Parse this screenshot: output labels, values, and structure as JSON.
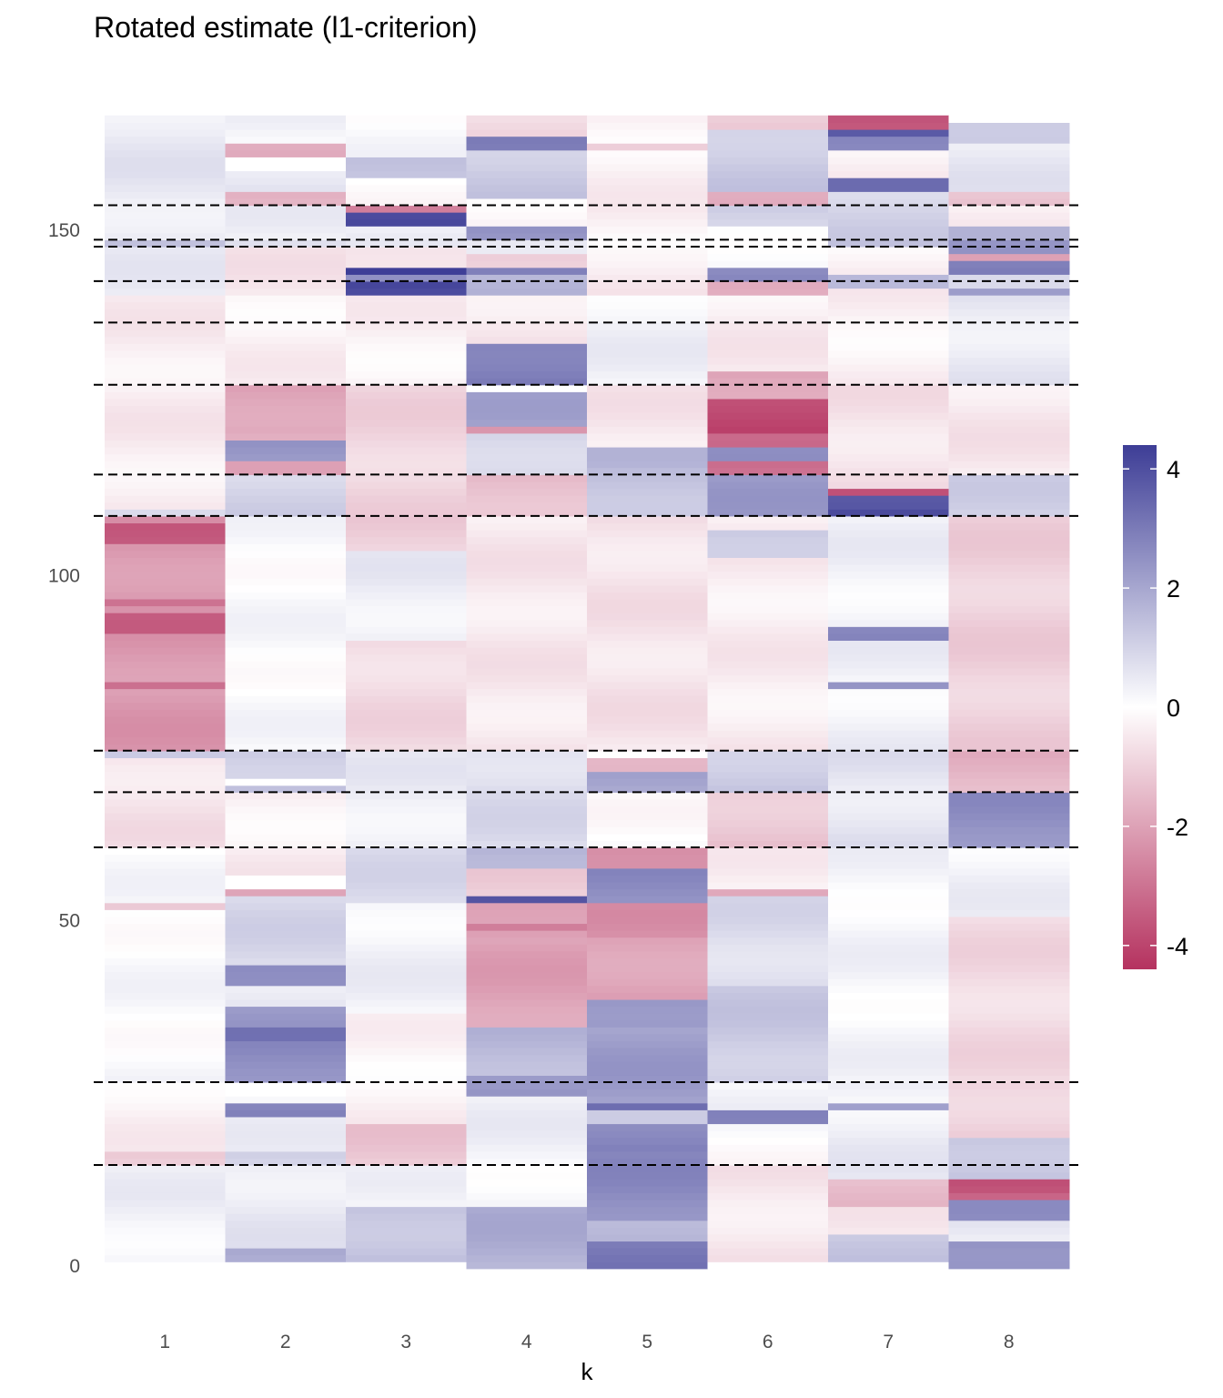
{
  "chart_data": {
    "type": "heatmap",
    "title": "Rotated estimate (l1-criterion)",
    "xlabel": "k",
    "ylabel": "",
    "x_categories": [
      "1",
      "2",
      "3",
      "4",
      "5",
      "6",
      "7",
      "8"
    ],
    "y_range": [
      0,
      166
    ],
    "y_ticks": [
      0,
      50,
      100,
      150
    ],
    "color_scale": {
      "min": -4.4,
      "max": 4.4,
      "low_color": "#b5325f",
      "mid_color": "#ffffff",
      "high_color": "#3d3d96",
      "legend_ticks": [
        4,
        2,
        0,
        -2,
        -4
      ]
    },
    "divider_rows": [
      14.5,
      26.5,
      60.5,
      68.5,
      74.5,
      108.5,
      114.5,
      127.5,
      136.5,
      142.5,
      147.5,
      148.5,
      153.5
    ],
    "legend_position": "right",
    "grid": false,
    "columns": [
      {
        "k": "1",
        "blocks": [
          [
            1,
            14,
            0.3
          ],
          [
            15,
            16,
            -1.0
          ],
          [
            17,
            26,
            -0.3
          ],
          [
            27,
            60,
            0.1
          ],
          [
            52,
            52,
            -1.2
          ],
          [
            61,
            73,
            -0.6
          ],
          [
            74,
            74,
            1.2
          ],
          [
            75,
            108,
            -2.2
          ],
          [
            105,
            107,
            -3.4
          ],
          [
            96,
            96,
            -3.0
          ],
          [
            92,
            94,
            -3.3
          ],
          [
            84,
            84,
            -3.3
          ],
          [
            109,
            109,
            1.0
          ],
          [
            110,
            127,
            -0.4
          ],
          [
            128,
            140,
            -0.4
          ],
          [
            141,
            147,
            0.4
          ],
          [
            148,
            148,
            1.4
          ],
          [
            149,
            166,
            0.5
          ]
        ]
      },
      {
        "k": "2",
        "blocks": [
          [
            1,
            2,
            1.8
          ],
          [
            3,
            14,
            0.5
          ],
          [
            15,
            16,
            1.0
          ],
          [
            17,
            24,
            0.3
          ],
          [
            22,
            23,
            2.8
          ],
          [
            27,
            32,
            2.6
          ],
          [
            33,
            34,
            3.0
          ],
          [
            35,
            37,
            2.2
          ],
          [
            38,
            42,
            0.6
          ],
          [
            41,
            43,
            2.8
          ],
          [
            44,
            53,
            0.9
          ],
          [
            54,
            54,
            -1.8
          ],
          [
            57,
            60,
            -0.4
          ],
          [
            61,
            68,
            -0.3
          ],
          [
            69,
            69,
            1.6
          ],
          [
            71,
            74,
            1.2
          ],
          [
            75,
            108,
            0.1
          ],
          [
            109,
            114,
            1.0
          ],
          [
            115,
            120,
            -1.8
          ],
          [
            117,
            119,
            2.5
          ],
          [
            121,
            127,
            -2.0
          ],
          [
            128,
            140,
            -0.3
          ],
          [
            141,
            147,
            -0.5
          ],
          [
            148,
            148,
            0.8
          ],
          [
            149,
            153,
            0.3
          ],
          [
            154,
            155,
            -1.8
          ],
          [
            156,
            158,
            0.6
          ],
          [
            161,
            162,
            -1.6
          ],
          [
            163,
            166,
            0.2
          ]
        ]
      },
      {
        "k": "3",
        "blocks": [
          [
            1,
            8,
            1.4
          ],
          [
            9,
            14,
            0.2
          ],
          [
            15,
            20,
            -1.2
          ],
          [
            21,
            26,
            -0.3
          ],
          [
            27,
            36,
            -0.2
          ],
          [
            37,
            52,
            0.3
          ],
          [
            53,
            60,
            0.8
          ],
          [
            61,
            74,
            0.4
          ],
          [
            75,
            90,
            -0.8
          ],
          [
            91,
            103,
            0.4
          ],
          [
            104,
            108,
            -1.0
          ],
          [
            109,
            114,
            -0.9
          ],
          [
            115,
            127,
            -0.9
          ],
          [
            128,
            140,
            -0.3
          ],
          [
            141,
            142,
            4.2
          ],
          [
            143,
            143,
            2.4
          ],
          [
            144,
            144,
            4.2
          ],
          [
            145,
            147,
            -0.8
          ],
          [
            148,
            150,
            0.4
          ],
          [
            151,
            152,
            4.3
          ],
          [
            153,
            153,
            -2.5
          ],
          [
            154,
            157,
            0.0
          ],
          [
            158,
            160,
            1.2
          ],
          [
            161,
            166,
            0.1
          ]
        ]
      },
      {
        "k": "4",
        "blocks": [
          [
            0,
            8,
            1.8
          ],
          [
            9,
            14,
            0.2
          ],
          [
            15,
            26,
            0.3
          ],
          [
            25,
            27,
            2.5
          ],
          [
            28,
            34,
            1.6
          ],
          [
            35,
            47,
            -2.0
          ],
          [
            48,
            52,
            -2.2
          ],
          [
            49,
            49,
            -3.0
          ],
          [
            53,
            53,
            3.8
          ],
          [
            54,
            57,
            -1.0
          ],
          [
            58,
            60,
            1.8
          ],
          [
            61,
            74,
            0.8
          ],
          [
            75,
            108,
            -0.5
          ],
          [
            109,
            114,
            -1.4
          ],
          [
            115,
            120,
            1.0
          ],
          [
            121,
            121,
            -2.3
          ],
          [
            122,
            126,
            2.0
          ],
          [
            128,
            133,
            3.0
          ],
          [
            134,
            140,
            -0.5
          ],
          [
            141,
            143,
            1.6
          ],
          [
            144,
            144,
            3.0
          ],
          [
            145,
            146,
            -0.8
          ],
          [
            147,
            148,
            0.7
          ],
          [
            149,
            150,
            2.5
          ],
          [
            151,
            154,
            -0.3
          ],
          [
            155,
            161,
            1.2
          ],
          [
            162,
            163,
            3.2
          ],
          [
            164,
            166,
            -0.8
          ]
        ]
      },
      {
        "k": "5",
        "blocks": [
          [
            0,
            3,
            3.0
          ],
          [
            4,
            6,
            1.8
          ],
          [
            7,
            16,
            2.6
          ],
          [
            17,
            20,
            2.8
          ],
          [
            21,
            22,
            1.4
          ],
          [
            23,
            23,
            3.5
          ],
          [
            24,
            34,
            2.2
          ],
          [
            35,
            38,
            2.5
          ],
          [
            39,
            47,
            -2.0
          ],
          [
            48,
            52,
            -2.3
          ],
          [
            53,
            57,
            2.6
          ],
          [
            58,
            60,
            -2.6
          ],
          [
            61,
            68,
            0.0
          ],
          [
            69,
            71,
            2.0
          ],
          [
            72,
            73,
            -1.8
          ],
          [
            75,
            108,
            -0.6
          ],
          [
            109,
            115,
            1.4
          ],
          [
            116,
            118,
            1.5
          ],
          [
            119,
            127,
            -0.5
          ],
          [
            128,
            140,
            0.3
          ],
          [
            141,
            147,
            -0.4
          ],
          [
            148,
            166,
            -0.3
          ],
          [
            162,
            162,
            -1.3
          ]
        ]
      },
      {
        "k": "6",
        "blocks": [
          [
            1,
            14,
            -0.5
          ],
          [
            15,
            20,
            0.0
          ],
          [
            21,
            22,
            2.6
          ],
          [
            23,
            26,
            0.2
          ],
          [
            27,
            40,
            1.2
          ],
          [
            41,
            53,
            0.8
          ],
          [
            54,
            54,
            -2.0
          ],
          [
            55,
            60,
            -0.3
          ],
          [
            61,
            68,
            -1.2
          ],
          [
            69,
            74,
            1.2
          ],
          [
            75,
            108,
            -0.4
          ],
          [
            103,
            106,
            1.3
          ],
          [
            109,
            114,
            2.2
          ],
          [
            115,
            120,
            -3.0
          ],
          [
            117,
            118,
            2.8
          ],
          [
            121,
            125,
            -4.0
          ],
          [
            126,
            129,
            -2.0
          ],
          [
            130,
            140,
            -0.4
          ],
          [
            141,
            142,
            -2.0
          ],
          [
            143,
            144,
            2.6
          ],
          [
            145,
            150,
            0.2
          ],
          [
            151,
            153,
            1.0
          ],
          [
            154,
            155,
            -2.0
          ],
          [
            156,
            164,
            1.2
          ],
          [
            165,
            166,
            -1.0
          ]
        ]
      },
      {
        "k": "7",
        "blocks": [
          [
            1,
            4,
            1.2
          ],
          [
            5,
            8,
            -0.4
          ],
          [
            9,
            12,
            -1.4
          ],
          [
            13,
            26,
            0.4
          ],
          [
            23,
            23,
            2.4
          ],
          [
            27,
            60,
            0.2
          ],
          [
            61,
            74,
            0.6
          ],
          [
            75,
            108,
            0.3
          ],
          [
            91,
            92,
            2.6
          ],
          [
            84,
            84,
            2.6
          ],
          [
            109,
            109,
            4.2
          ],
          [
            110,
            111,
            4.0
          ],
          [
            112,
            112,
            -3.5
          ],
          [
            113,
            127,
            -0.6
          ],
          [
            128,
            141,
            -0.3
          ],
          [
            142,
            143,
            1.8
          ],
          [
            144,
            147,
            -0.3
          ],
          [
            148,
            148,
            1.2
          ],
          [
            149,
            155,
            1.0
          ],
          [
            156,
            157,
            3.6
          ],
          [
            158,
            161,
            -0.3
          ],
          [
            162,
            163,
            2.5
          ],
          [
            164,
            164,
            3.5
          ],
          [
            165,
            166,
            -3.8
          ]
        ]
      },
      {
        "k": "8",
        "blocks": [
          [
            0,
            3,
            2.6
          ],
          [
            4,
            6,
            0.5
          ],
          [
            7,
            9,
            2.4
          ],
          [
            10,
            10,
            -3.5
          ],
          [
            11,
            12,
            -3.8
          ],
          [
            13,
            18,
            1.4
          ],
          [
            19,
            26,
            -1.0
          ],
          [
            27,
            36,
            -0.8
          ],
          [
            37,
            50,
            -0.8
          ],
          [
            51,
            60,
            0.3
          ],
          [
            61,
            68,
            2.5
          ],
          [
            69,
            74,
            -1.6
          ],
          [
            75,
            108,
            -1.0
          ],
          [
            109,
            114,
            1.0
          ],
          [
            115,
            127,
            -0.5
          ],
          [
            128,
            140,
            0.5
          ],
          [
            141,
            141,
            2.0
          ],
          [
            142,
            143,
            0.6
          ],
          [
            144,
            145,
            2.8
          ],
          [
            146,
            146,
            -2.0
          ],
          [
            147,
            148,
            2.6
          ],
          [
            149,
            150,
            2.0
          ],
          [
            151,
            153,
            -0.3
          ],
          [
            154,
            155,
            -1.4
          ],
          [
            156,
            162,
            0.5
          ],
          [
            163,
            165,
            1.4
          ]
        ]
      }
    ]
  }
}
